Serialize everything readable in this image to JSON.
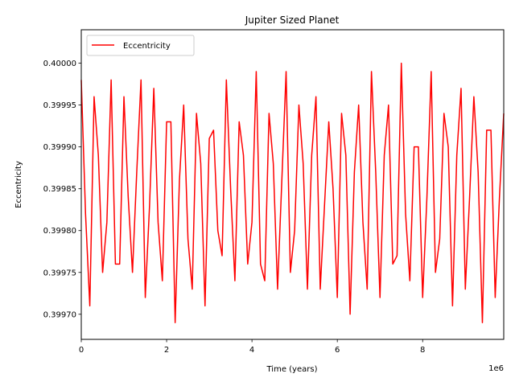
{
  "chart_data": {
    "type": "line",
    "title": "Jupiter Sized Planet",
    "xlabel": "Time (years)",
    "ylabel": "Eccentricity",
    "x_offset_label": "1e6",
    "xlim": [
      0,
      9.9
    ],
    "ylim": [
      0.39967,
      0.40004
    ],
    "x_ticks": [
      0,
      2,
      4,
      6,
      8
    ],
    "x_tick_labels": [
      "0",
      "2",
      "4",
      "6",
      "8"
    ],
    "y_ticks": [
      0.3997,
      0.39975,
      0.3998,
      0.39985,
      0.3999,
      0.39995,
      0.4
    ],
    "y_tick_labels": [
      "0.39970",
      "0.39975",
      "0.39980",
      "0.39985",
      "0.39990",
      "0.39995",
      "0.40000"
    ],
    "grid": false,
    "legend_position": "top-left",
    "colors": {
      "series": "#ff0000"
    },
    "series": [
      {
        "name": "Eccentricity",
        "x": [
          0,
          0.1,
          0.2,
          0.3,
          0.4,
          0.5,
          0.6,
          0.7,
          0.8,
          0.9,
          1.0,
          1.1,
          1.2,
          1.3,
          1.4,
          1.5,
          1.6,
          1.7,
          1.8,
          1.9,
          2.0,
          2.1,
          2.2,
          2.3,
          2.4,
          2.5,
          2.6,
          2.7,
          2.8,
          2.9,
          3.0,
          3.1,
          3.2,
          3.3,
          3.4,
          3.5,
          3.6,
          3.7,
          3.8,
          3.9,
          4.0,
          4.1,
          4.2,
          4.3,
          4.4,
          4.5,
          4.6,
          4.7,
          4.8,
          4.9,
          5.0,
          5.1,
          5.2,
          5.3,
          5.4,
          5.5,
          5.6,
          5.7,
          5.8,
          5.9,
          6.0,
          6.1,
          6.2,
          6.3,
          6.4,
          6.5,
          6.6,
          6.7,
          6.8,
          6.9,
          7.0,
          7.1,
          7.2,
          7.3,
          7.4,
          7.5,
          7.6,
          7.7,
          7.8,
          7.9,
          8.0,
          8.1,
          8.2,
          8.3,
          8.4,
          8.5,
          8.6,
          8.7,
          8.8,
          8.9,
          9.0,
          9.1,
          9.2,
          9.3,
          9.4,
          9.5,
          9.6,
          9.7,
          9.8,
          9.9
        ],
        "y": [
          0.39998,
          0.39982,
          0.39971,
          0.39996,
          0.39989,
          0.39975,
          0.39981,
          0.39998,
          0.39976,
          0.39976,
          0.39996,
          0.39984,
          0.39975,
          0.39987,
          0.39998,
          0.39972,
          0.39983,
          0.39997,
          0.39981,
          0.39974,
          0.39993,
          0.39993,
          0.39969,
          0.39986,
          0.39995,
          0.39979,
          0.39973,
          0.39994,
          0.39988,
          0.39971,
          0.39991,
          0.39992,
          0.3998,
          0.39977,
          0.39998,
          0.39985,
          0.39974,
          0.39993,
          0.39989,
          0.39976,
          0.39981,
          0.39999,
          0.39976,
          0.39974,
          0.39994,
          0.39988,
          0.39973,
          0.39986,
          0.39999,
          0.39975,
          0.3998,
          0.39995,
          0.39988,
          0.39973,
          0.39989,
          0.39996,
          0.39973,
          0.39983,
          0.39993,
          0.39985,
          0.39972,
          0.39994,
          0.39989,
          0.3997,
          0.39987,
          0.39995,
          0.39981,
          0.39973,
          0.39999,
          0.39987,
          0.39972,
          0.39989,
          0.39995,
          0.39976,
          0.39977,
          0.4,
          0.39982,
          0.39974,
          0.3999,
          0.3999,
          0.39972,
          0.39984,
          0.39999,
          0.39975,
          0.39979,
          0.39994,
          0.3999,
          0.39971,
          0.39989,
          0.39997,
          0.39973,
          0.39984,
          0.39996,
          0.39987,
          0.39969,
          0.39992,
          0.39992,
          0.39972,
          0.39984,
          0.39994
        ]
      }
    ]
  }
}
